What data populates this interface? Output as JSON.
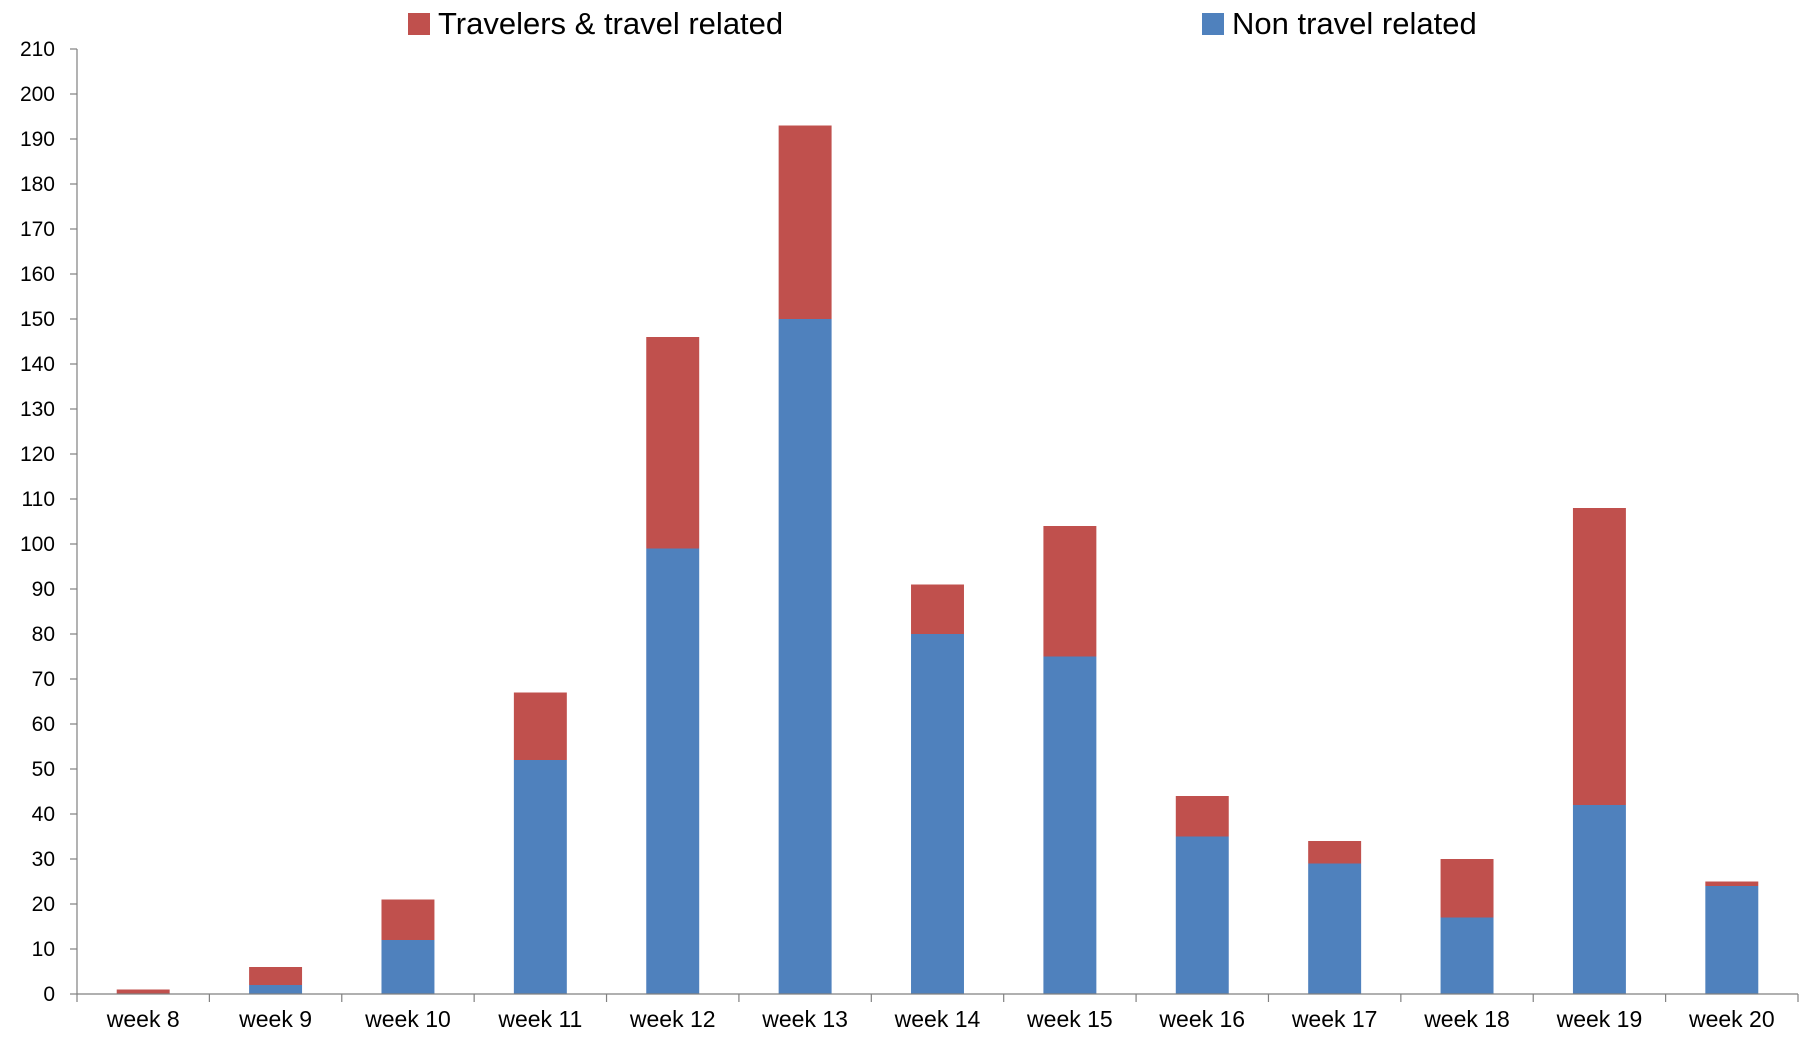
{
  "chart_data": {
    "type": "bar",
    "stacked": true,
    "title": "",
    "xlabel": "",
    "ylabel": "",
    "ylim": [
      0,
      210
    ],
    "yticks": [
      0,
      10,
      20,
      30,
      40,
      50,
      60,
      70,
      80,
      90,
      100,
      110,
      120,
      130,
      140,
      150,
      160,
      170,
      180,
      190,
      200,
      210
    ],
    "grid": false,
    "legend_position": "top",
    "categories": [
      "week 8",
      "week 9",
      "week 10",
      "week 11",
      "week 12",
      "week 13",
      "week 14",
      "week 15",
      "week 16",
      "week 17",
      "week 18",
      "week 19",
      "week 20"
    ],
    "series": [
      {
        "name": "Non travel related",
        "color": "#4F81BD",
        "values": [
          0,
          2,
          12,
          52,
          99,
          150,
          80,
          75,
          35,
          29,
          17,
          42,
          24
        ]
      },
      {
        "name": "Travelers & travel related",
        "color": "#C0504D",
        "values": [
          1,
          4,
          9,
          15,
          47,
          43,
          11,
          29,
          9,
          5,
          13,
          66,
          1
        ]
      }
    ],
    "legend_order": [
      "Travelers & travel related",
      "Non travel related"
    ]
  }
}
